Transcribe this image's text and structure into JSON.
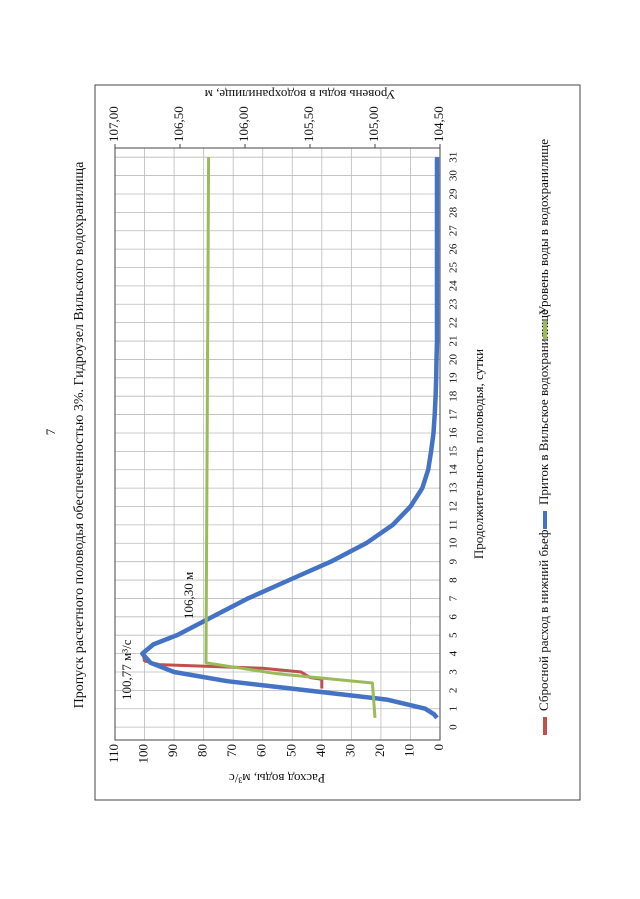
{
  "page_number": "7",
  "chart_data": {
    "type": "line",
    "title": "Пропуск расчетного половодья обеспеченностью 3%. Гидроузел Вильского водохранилища",
    "x_label": "Продолжительность половодья, сутки",
    "y_label": "Расход воды, м³/с",
    "y2_label": "Уровень воды в водохранилище, м",
    "annotations": [
      "100,77 м³/с",
      "106,30 м"
    ],
    "xlim": [
      -0.7,
      31.5
    ],
    "xticks": [
      0,
      1,
      2,
      3,
      4,
      5,
      6,
      7,
      8,
      9,
      10,
      11,
      12,
      13,
      14,
      15,
      16,
      17,
      18,
      19,
      20,
      21,
      22,
      23,
      24,
      25,
      26,
      27,
      28,
      29,
      30,
      31
    ],
    "ylim": [
      0,
      110
    ],
    "yticks": [
      0,
      10,
      20,
      30,
      40,
      50,
      60,
      70,
      80,
      90,
      100,
      110
    ],
    "y2lim": [
      104.5,
      107.0
    ],
    "y2ticks": [
      {
        "value": 104.5,
        "label": "104,50"
      },
      {
        "value": 105.0,
        "label": "105,00"
      },
      {
        "value": 105.5,
        "label": "105,50"
      },
      {
        "value": 106.0,
        "label": "106,00"
      },
      {
        "value": 106.5,
        "label": "106,50"
      },
      {
        "value": 107.0,
        "label": "107,00"
      }
    ],
    "grid": true,
    "series": [
      {
        "name": "Сбросной расход в нижний бьеф",
        "color": "#c0504d",
        "x": [
          2.1,
          2.6,
          2.7,
          3,
          3.2,
          3.4,
          3.6,
          4,
          4.5,
          5,
          6,
          7,
          8,
          9,
          10,
          11,
          12,
          13,
          14,
          15,
          16,
          17,
          18,
          19,
          20,
          21,
          22,
          23,
          24,
          25,
          26,
          27,
          28,
          29,
          30,
          31
        ],
        "values": [
          40,
          40,
          44,
          47,
          60,
          95,
          100,
          100.5,
          97,
          89,
          77,
          65,
          51,
          37,
          25,
          16,
          10,
          6,
          4,
          3,
          2.2,
          1.8,
          1.5,
          1.3,
          1.2,
          1,
          1,
          1,
          1,
          1,
          1,
          1,
          1,
          1,
          1,
          1
        ]
      },
      {
        "name": "Приток в Вильское водохранилище",
        "color": "#4472c4",
        "x": [
          0.5,
          0.7,
          1,
          1.5,
          2,
          2.5,
          3,
          3.5,
          4,
          4.5,
          5,
          6,
          7,
          8,
          9,
          10,
          11,
          12,
          13,
          14,
          15,
          16,
          17,
          18,
          19,
          20,
          21,
          22,
          23,
          24,
          25,
          26,
          27,
          28,
          29,
          30,
          31
        ],
        "values": [
          1,
          2,
          5,
          18,
          45,
          72,
          90,
          98,
          100.77,
          97,
          89,
          77,
          65,
          51,
          37,
          25,
          16,
          10,
          6,
          4,
          3,
          2.2,
          1.8,
          1.5,
          1.3,
          1.2,
          1,
          1,
          1,
          1,
          1,
          1,
          1,
          1,
          1,
          1,
          1
        ]
      },
      {
        "name": "Уровень воды в водохранилище",
        "color": "#9bbb59",
        "axis": "y2",
        "x": [
          0.5,
          2.4,
          2.9,
          3.5,
          31
        ],
        "values": [
          105.0,
          105.02,
          105.75,
          106.3,
          106.28
        ]
      }
    ]
  }
}
